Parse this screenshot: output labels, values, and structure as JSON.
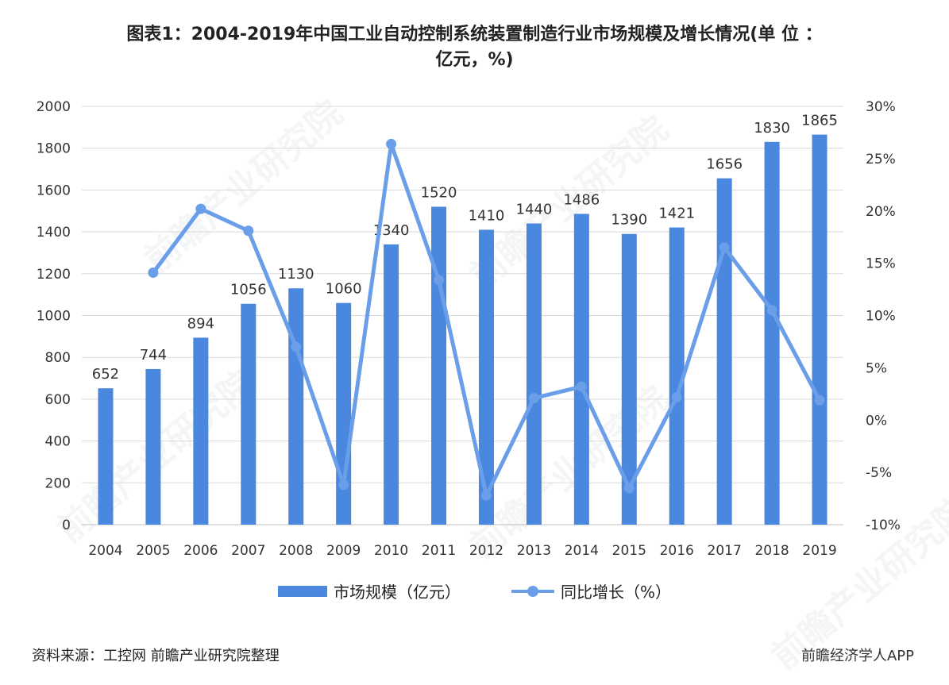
{
  "title": {
    "line1": "图表1：2004-2019年中国工业自动控制系统装置制造行业市场规模及增长情况(单 位 ：",
    "line2": "亿元，%)"
  },
  "colors": {
    "bar": "#4a88e0",
    "line": "#6b9ee8",
    "grid": "#d9d9d9"
  },
  "chart_data": {
    "type": "bar",
    "categories": [
      "2004",
      "2005",
      "2006",
      "2007",
      "2008",
      "2009",
      "2010",
      "2011",
      "2012",
      "2013",
      "2014",
      "2015",
      "2016",
      "2017",
      "2018",
      "2019"
    ],
    "series": [
      {
        "name": "市场规模（亿元）",
        "type": "bar",
        "axis": "left",
        "values": [
          652,
          744,
          894,
          1056,
          1130,
          1060,
          1340,
          1520,
          1410,
          1440,
          1486,
          1390,
          1421,
          1656,
          1830,
          1865
        ]
      },
      {
        "name": "同比增长（%）",
        "type": "line",
        "axis": "right",
        "values": [
          null,
          14.1,
          20.2,
          18.1,
          7.0,
          -6.2,
          26.4,
          13.4,
          -7.2,
          2.1,
          3.2,
          -6.5,
          2.2,
          16.5,
          10.5,
          1.9
        ]
      }
    ],
    "data_labels": [
      "652",
      "744",
      "894",
      "1056",
      "1130",
      "1060",
      "1340",
      "1520",
      "1410",
      "1440",
      "1486",
      "1390",
      "1421",
      "1656",
      "1830",
      "1865"
    ],
    "y_left": {
      "range": [
        0,
        2000
      ],
      "ticks": [
        "0",
        "200",
        "400",
        "600",
        "800",
        "1000",
        "1200",
        "1400",
        "1600",
        "1800",
        "2000"
      ]
    },
    "y_right": {
      "range": [
        -10,
        30
      ],
      "ticks": [
        "-10%",
        "-5%",
        "0%",
        "5%",
        "10%",
        "15%",
        "20%",
        "25%",
        "30%"
      ]
    },
    "grid": true,
    "legend_position": "bottom"
  },
  "footer": {
    "source": "资料来源：工控网 前瞻产业研究院整理",
    "brand": "前瞻经济学人APP"
  },
  "watermark": "前瞻产业研究院"
}
